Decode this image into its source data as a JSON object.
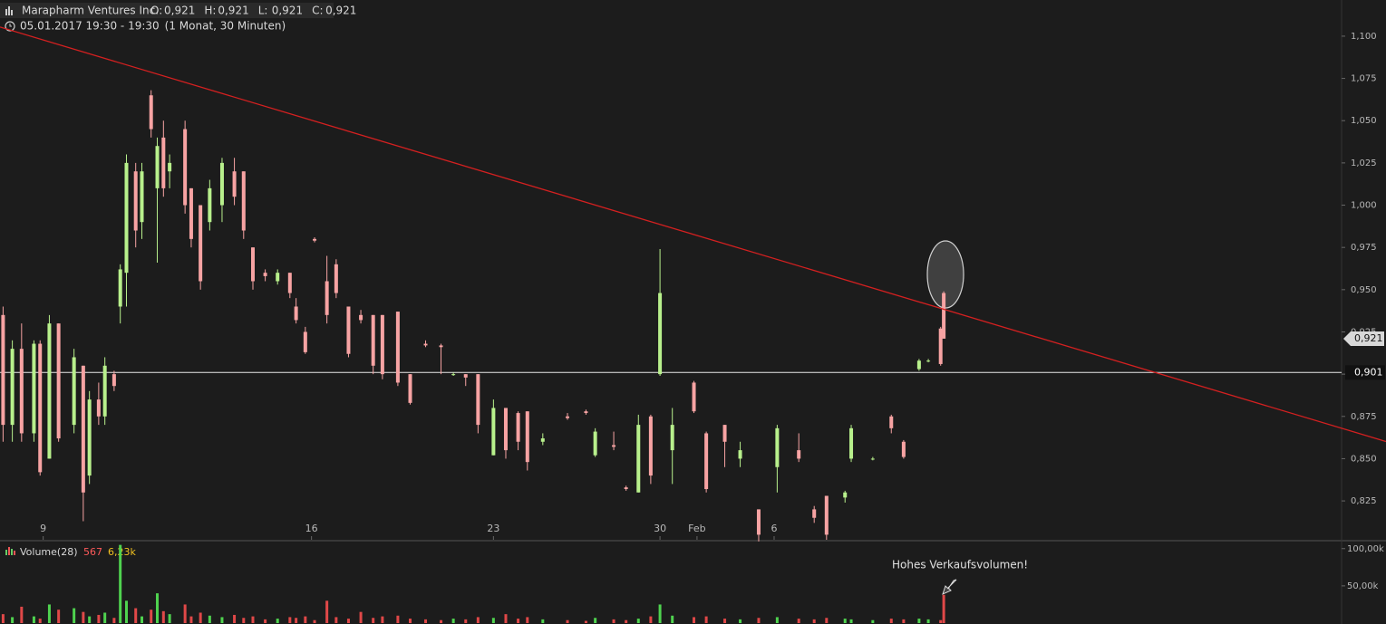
{
  "chart_data": {
    "type": "candlestick",
    "title": "Marapharm Ventures Inc.",
    "ohlc_header": [
      {
        "label": "O:",
        "value": "0,921"
      },
      {
        "label": "H:",
        "value": "0,921"
      },
      {
        "label": "L:",
        "value": "0,921"
      },
      {
        "label": "C:",
        "value": "0,921"
      }
    ],
    "subtitle": "05.01.2017 19:30 - 19:30",
    "period": "(1 Monat, 30 Minuten)",
    "up_color": "#b8f08c",
    "down_color": "#f7a3a3",
    "xlim": [
      0,
      435
    ],
    "xticks": [
      {
        "value": 14,
        "label": "9"
      },
      {
        "value": 101,
        "label": "16"
      },
      {
        "value": 160,
        "label": "23"
      },
      {
        "value": 214,
        "label": "30"
      },
      {
        "value": 226,
        "label": "Feb"
      },
      {
        "value": 251,
        "label": "6"
      }
    ],
    "ylim": [
      0.802,
      1.1214
    ],
    "yticks": [
      {
        "value": 0.825,
        "label": "0,825"
      },
      {
        "value": 0.85,
        "label": "0,850"
      },
      {
        "value": 0.875,
        "label": "0,875"
      },
      {
        "value": 0.9,
        "label": "0,900"
      },
      {
        "value": 0.925,
        "label": "0,925"
      },
      {
        "value": 0.95,
        "label": "0,950"
      },
      {
        "value": 0.975,
        "label": "0,975"
      },
      {
        "value": 1.0,
        "label": "1,000"
      },
      {
        "value": 1.025,
        "label": "1,025"
      },
      {
        "value": 1.05,
        "label": "1,050"
      },
      {
        "value": 1.075,
        "label": "1,075"
      },
      {
        "value": 1.1,
        "label": "1,100"
      }
    ],
    "candles": {
      "x": [
        1,
        4,
        7,
        11,
        13,
        16,
        19,
        24,
        27,
        29,
        32,
        34,
        37,
        39,
        41,
        44,
        46,
        49,
        51,
        53,
        55,
        60,
        62,
        65,
        68,
        72,
        76,
        79,
        82,
        86,
        90,
        94,
        96,
        99,
        102,
        106,
        109,
        113,
        117,
        121,
        124,
        129,
        133,
        138,
        143,
        147,
        151,
        155,
        160,
        164,
        168,
        171,
        176,
        184,
        190,
        193,
        199,
        203,
        207,
        211,
        214,
        218,
        225,
        229,
        235,
        240,
        246,
        252,
        259,
        264,
        268,
        274,
        276,
        283,
        289,
        293,
        298,
        301,
        305,
        306
      ],
      "open": [
        0.935,
        0.87,
        0.915,
        0.865,
        0.918,
        0.85,
        0.93,
        0.87,
        0.905,
        0.84,
        0.885,
        0.875,
        0.9,
        0.94,
        0.96,
        1.02,
        0.99,
        1.065,
        1.01,
        1.04,
        1.02,
        1.045,
        1.01,
        1.0,
        0.99,
        1.0,
        1.02,
        1.02,
        0.975,
        0.96,
        0.955,
        0.96,
        0.94,
        0.925,
        0.98,
        0.955,
        0.965,
        0.94,
        0.935,
        0.935,
        0.935,
        0.937,
        0.9,
        0.918,
        0.917,
        0.9,
        0.9,
        0.9,
        0.852,
        0.88,
        0.877,
        0.878,
        0.86,
        0.875,
        0.878,
        0.852,
        0.858,
        0.833,
        0.83,
        0.875,
        0.9,
        0.855,
        0.895,
        0.865,
        0.87,
        0.85,
        0.82,
        0.845,
        0.855,
        0.82,
        0.828,
        0.827,
        0.85,
        0.85,
        0.875,
        0.86,
        0.903,
        0.908,
        0.927,
        0.948
      ],
      "high": [
        0.94,
        0.92,
        0.93,
        0.92,
        0.92,
        0.935,
        0.93,
        0.915,
        0.905,
        0.89,
        0.895,
        0.91,
        0.902,
        0.965,
        1.03,
        1.025,
        1.025,
        1.068,
        1.04,
        1.05,
        1.03,
        1.05,
        1.01,
        1.0,
        1.015,
        1.028,
        1.028,
        1.02,
        0.975,
        0.962,
        0.962,
        0.96,
        0.945,
        0.928,
        0.981,
        0.97,
        0.968,
        0.94,
        0.938,
        0.935,
        0.935,
        0.937,
        0.9,
        0.92,
        0.918,
        0.901,
        0.9,
        0.9,
        0.885,
        0.88,
        0.878,
        0.878,
        0.865,
        0.877,
        0.879,
        0.868,
        0.866,
        0.834,
        0.876,
        0.876,
        0.974,
        0.88,
        0.896,
        0.866,
        0.87,
        0.86,
        0.82,
        0.87,
        0.865,
        0.822,
        0.828,
        0.831,
        0.87,
        0.851,
        0.876,
        0.861,
        0.909,
        0.909,
        0.928,
        0.949
      ],
      "low": [
        0.86,
        0.86,
        0.86,
        0.86,
        0.84,
        0.85,
        0.86,
        0.865,
        0.813,
        0.835,
        0.87,
        0.87,
        0.89,
        0.93,
        0.94,
        0.975,
        0.98,
        1.04,
        0.966,
        1.005,
        1.01,
        0.995,
        0.975,
        0.95,
        0.985,
        0.99,
        1.0,
        0.98,
        0.95,
        0.955,
        0.953,
        0.945,
        0.93,
        0.912,
        0.978,
        0.93,
        0.945,
        0.91,
        0.93,
        0.9,
        0.897,
        0.893,
        0.882,
        0.916,
        0.9,
        0.899,
        0.893,
        0.865,
        0.852,
        0.85,
        0.855,
        0.843,
        0.858,
        0.873,
        0.876,
        0.851,
        0.855,
        0.831,
        0.83,
        0.835,
        0.899,
        0.835,
        0.877,
        0.83,
        0.845,
        0.845,
        0.801,
        0.83,
        0.848,
        0.812,
        0.802,
        0.824,
        0.848,
        0.849,
        0.865,
        0.85,
        0.902,
        0.907,
        0.905,
        0.921
      ],
      "close": [
        0.87,
        0.915,
        0.865,
        0.918,
        0.842,
        0.93,
        0.862,
        0.91,
        0.83,
        0.885,
        0.875,
        0.905,
        0.893,
        0.962,
        1.025,
        0.985,
        1.02,
        1.045,
        1.035,
        1.01,
        1.025,
        1.0,
        0.98,
        0.955,
        1.01,
        1.025,
        1.005,
        0.985,
        0.955,
        0.958,
        0.96,
        0.948,
        0.932,
        0.913,
        0.979,
        0.935,
        0.948,
        0.912,
        0.932,
        0.905,
        0.9,
        0.895,
        0.883,
        0.917,
        0.916,
        0.9,
        0.898,
        0.87,
        0.88,
        0.855,
        0.86,
        0.848,
        0.862,
        0.874,
        0.877,
        0.866,
        0.857,
        0.832,
        0.87,
        0.84,
        0.948,
        0.87,
        0.878,
        0.832,
        0.86,
        0.855,
        0.805,
        0.868,
        0.85,
        0.815,
        0.805,
        0.83,
        0.868,
        0.85,
        0.868,
        0.851,
        0.908,
        0.908,
        0.906,
        0.921
      ],
      "volume": [
        12000,
        8000,
        22000,
        9000,
        6000,
        25000,
        18000,
        20000,
        15000,
        9000,
        11000,
        14000,
        7000,
        105000,
        30000,
        20000,
        9000,
        18000,
        40000,
        16000,
        12000,
        25000,
        9000,
        14000,
        10000,
        8000,
        11000,
        7000,
        9000,
        5000,
        6000,
        8000,
        7000,
        9000,
        4000,
        30000,
        8000,
        6000,
        15000,
        7000,
        9000,
        10000,
        6000,
        5000,
        4000,
        6000,
        5000,
        8000,
        7000,
        12000,
        6000,
        8000,
        5000,
        4000,
        3000,
        7000,
        5000,
        4000,
        6000,
        9000,
        25000,
        10000,
        8000,
        9000,
        6000,
        5000,
        7000,
        8000,
        6000,
        5000,
        7000,
        6000,
        5000,
        4000,
        6000,
        5000,
        6000,
        5000,
        4000,
        38000
      ]
    },
    "trendline": {
      "x": [
        0,
        435
      ],
      "y": [
        1.1054,
        0.868
      ],
      "color": "#d42020"
    },
    "hline": {
      "value": 0.901,
      "label": "0,901",
      "color": "#e8e8e8"
    },
    "last_price": {
      "value": 0.921,
      "label": "0,921"
    },
    "volume_panel": {
      "name": "Volume(28)",
      "last_value": "567",
      "average": "6,23k",
      "ylim": [
        0,
        107000
      ],
      "yticks": [
        {
          "value": 50000,
          "label": "50,00k"
        },
        {
          "value": 100000,
          "label": "100,00k"
        }
      ]
    },
    "annotation": "Hohes Verkaufsvolumen!"
  }
}
